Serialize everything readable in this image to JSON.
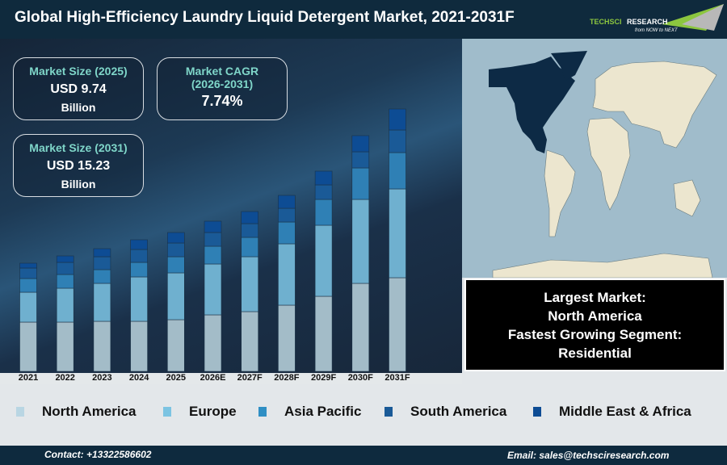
{
  "header": {
    "title": "Global High-Efficiency Laundry Liquid Detergent Market, 2021-2031F",
    "logo_text": "TECHSCI RESEARCH",
    "logo_tagline": "from NOW to NEXT"
  },
  "cards": [
    {
      "label": "Market Size (2025)",
      "value": "USD 9.74",
      "unit": "Billion"
    },
    {
      "label": "Market CAGR (2026-2031)",
      "value": "7.74%"
    },
    {
      "label": "Market Size (2031)",
      "value": "USD 15.23",
      "unit": "Billion"
    }
  ],
  "info": {
    "line1": "Largest Market:",
    "line2": "North America",
    "line3": "Fastest Growing Segment:",
    "line4": "Residential"
  },
  "footer": {
    "contact": "Contact: +13322586602",
    "email": "Email: sales@techsciresearch.com"
  },
  "colors": {
    "north_america": "#a3bcc8",
    "europe": "#6fb0cf",
    "asia_pacific": "#2f80b5",
    "south_america": "#1a5a97",
    "middle_east_africa": "#0d4c94",
    "highlight_region": "#0d2a45"
  },
  "chart_data": {
    "type": "bar",
    "stacked": true,
    "title": "",
    "xlabel": "",
    "ylabel": "",
    "grid": false,
    "legend_placement": "bottom",
    "categories": [
      "2021",
      "2022",
      "2023",
      "2024",
      "2025",
      "2026E",
      "2027F",
      "2028F",
      "2029F",
      "2030F",
      "2031F"
    ],
    "series": [
      {
        "name": "North America",
        "color": "#a3bcc8",
        "values": [
          61,
          61,
          62,
          62,
          64,
          70,
          74,
          82,
          93,
          109,
          116
        ]
      },
      {
        "name": "Europe",
        "color": "#6fb0cf",
        "values": [
          37,
          42,
          47,
          55,
          58,
          63,
          68,
          76,
          88,
          104,
          110
        ]
      },
      {
        "name": "Asia Pacific",
        "color": "#2f80b5",
        "values": [
          17,
          17,
          17,
          18,
          20,
          22,
          24,
          27,
          32,
          39,
          45
        ]
      },
      {
        "name": "South America",
        "color": "#1a5a97",
        "values": [
          13,
          15,
          16,
          16,
          17,
          17,
          17,
          17,
          18,
          20,
          28
        ]
      },
      {
        "name": "Middle East & Africa",
        "color": "#0d4c94",
        "values": [
          6,
          8,
          10,
          12,
          13,
          14,
          15,
          16,
          17,
          20,
          26
        ]
      }
    ]
  }
}
